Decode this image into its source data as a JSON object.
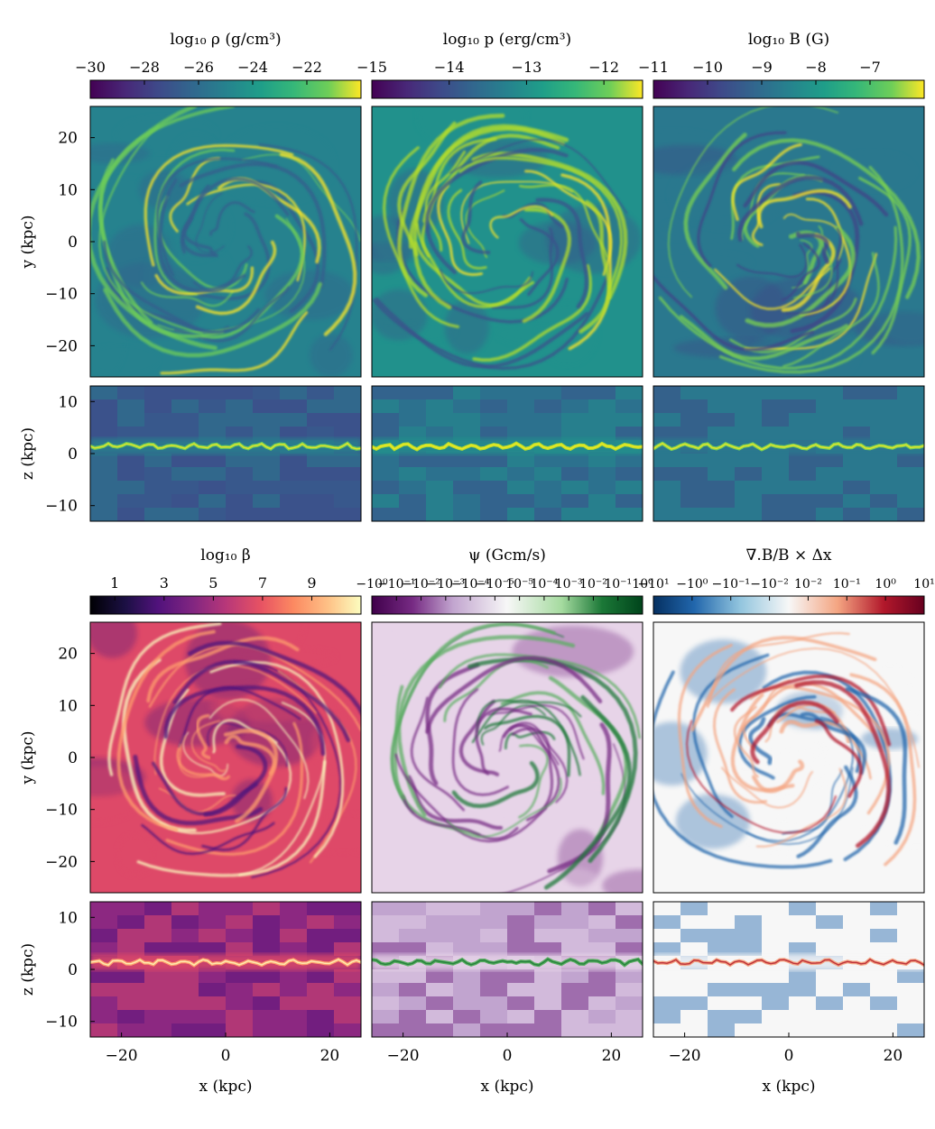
{
  "chart_data": [
    {
      "type": "heatmap",
      "title": "log₁₀ ρ (g/cm³)",
      "colormap": "viridis",
      "colorbar": {
        "range": [
          -30,
          -20
        ],
        "ticks": [
          -30,
          -28,
          -26,
          -24,
          -22
        ]
      },
      "panels": [
        {
          "view": "face-on",
          "xlim": [
            -26,
            26
          ],
          "ylim": [
            -26,
            26
          ],
          "ylabel": "y (kpc)",
          "yticks": [
            20,
            10,
            0,
            -10,
            -20
          ]
        },
        {
          "view": "edge-on",
          "xlim": [
            -26,
            26
          ],
          "ylim": [
            -13,
            13
          ],
          "ylabel": "z (kpc)",
          "yticks": [
            10,
            0,
            -10
          ]
        }
      ],
      "palette": {
        "base": "#26828e",
        "dark": "#355f8d",
        "bright": "#6ece58",
        "peak": "#fde725",
        "edge_bg": "#3b528b"
      }
    },
    {
      "type": "heatmap",
      "title": "log₁₀ p (erg/cm³)",
      "colormap": "viridis",
      "colorbar": {
        "range": [
          -15,
          -11.5
        ],
        "ticks": [
          -15,
          -14,
          -13,
          -12
        ]
      },
      "panels": [
        {
          "view": "face-on",
          "xlim": [
            -26,
            26
          ],
          "ylim": [
            -26,
            26
          ]
        },
        {
          "view": "edge-on",
          "xlim": [
            -26,
            26
          ],
          "ylim": [
            -13,
            13
          ]
        }
      ],
      "palette": {
        "base": "#21918c",
        "dark": "#3b528b",
        "bright": "#b5de2b",
        "peak": "#fde725",
        "edge_bg": "#2c728e"
      }
    },
    {
      "type": "heatmap",
      "title": "log₁₀ B (G)",
      "colormap": "viridis",
      "colorbar": {
        "range": [
          -11,
          -6
        ],
        "ticks": [
          -11,
          -10,
          -9,
          -8,
          -7
        ]
      },
      "panels": [
        {
          "view": "face-on",
          "xlim": [
            -26,
            26
          ],
          "ylim": [
            -26,
            26
          ]
        },
        {
          "view": "edge-on",
          "xlim": [
            -26,
            26
          ],
          "ylim": [
            -13,
            13
          ]
        }
      ],
      "palette": {
        "base": "#2a788e",
        "dark": "#414487",
        "bright": "#7ad151",
        "peak": "#fde725",
        "edge_bg": "#2a788e"
      }
    },
    {
      "type": "heatmap",
      "title": "log₁₀ β",
      "colormap": "magma",
      "colorbar": {
        "range": [
          0,
          11
        ],
        "ticks": [
          1,
          3,
          5,
          7,
          9
        ]
      },
      "panels": [
        {
          "view": "face-on",
          "xlim": [
            -26,
            26
          ],
          "ylim": [
            -26,
            26
          ],
          "ylabel": "y (kpc)",
          "yticks": [
            20,
            10,
            0,
            -10,
            -20
          ]
        },
        {
          "view": "edge-on",
          "xlim": [
            -26,
            26
          ],
          "ylim": [
            -13,
            13
          ],
          "xlabel": "x (kpc)",
          "ylabel": "z (kpc)",
          "xticks": [
            -20,
            0,
            20
          ],
          "yticks": [
            10,
            0,
            -10
          ]
        }
      ],
      "palette": {
        "base": "#de4968",
        "dark": "#51127c",
        "bright": "#fe9f6d",
        "peak": "#fcfdbf",
        "edge_bg": "#8c2981"
      }
    },
    {
      "type": "heatmap",
      "title": "ψ (Gcm/s)",
      "colormap": "PRGn (symmetric log)",
      "colorbar": {
        "range": [
          -1,
          1
        ],
        "ticks": [
          "−10⁰",
          "−10⁻¹",
          "−10⁻²",
          "−10⁻³",
          "−10⁻⁴",
          "−10⁻⁵",
          "10⁻⁵",
          "10⁻⁴",
          "10⁻³",
          "10⁻²",
          "10⁻¹",
          "10⁰"
        ]
      },
      "panels": [
        {
          "view": "face-on",
          "xlim": [
            -26,
            26
          ],
          "ylim": [
            -26,
            26
          ]
        },
        {
          "view": "edge-on",
          "xlim": [
            -26,
            26
          ],
          "ylim": [
            -13,
            13
          ],
          "xlabel": "x (kpc)",
          "xticks": [
            -20,
            0,
            20
          ]
        }
      ],
      "palette": {
        "base": "#e7d4e8",
        "dark": "#762a83",
        "bright": "#5aae61",
        "peak": "#1b7837",
        "edge_bg": "#c2a5cf"
      }
    },
    {
      "type": "heatmap",
      "title": "∇.B/B × Δx",
      "colormap": "RdBu_r (symmetric log)",
      "colorbar": {
        "range": [
          -10,
          10
        ],
        "ticks": [
          "−10¹",
          "−10⁰",
          "−10⁻¹",
          "−10⁻²",
          "10⁻²",
          "10⁻¹",
          "10⁰",
          "10¹"
        ]
      },
      "panels": [
        {
          "view": "face-on",
          "xlim": [
            -26,
            26
          ],
          "ylim": [
            -26,
            26
          ]
        },
        {
          "view": "edge-on",
          "xlim": [
            -26,
            26
          ],
          "ylim": [
            -13,
            13
          ],
          "xlabel": "x (kpc)",
          "xticks": [
            -20,
            0,
            20
          ]
        }
      ],
      "palette": {
        "base": "#f7f7f7",
        "dark": "#2166ac",
        "bright": "#f4a582",
        "peak": "#b2182b",
        "edge_bg": "#f7f7f7"
      }
    }
  ]
}
